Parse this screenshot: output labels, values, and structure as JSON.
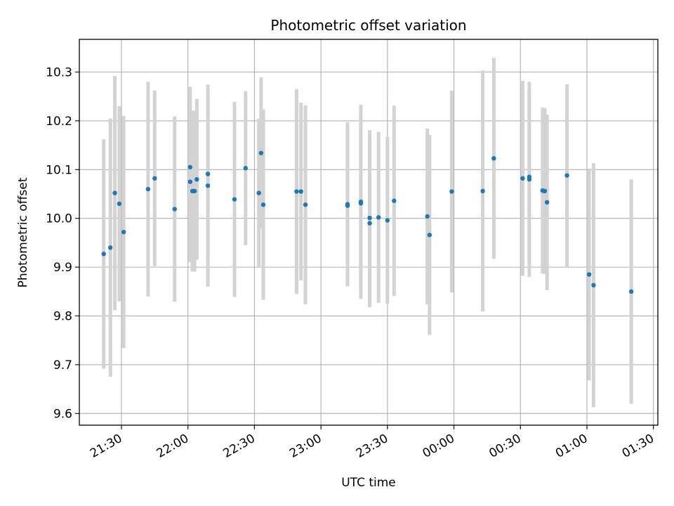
{
  "chart_data": {
    "type": "scatter",
    "title": "Photometric offset variation",
    "xlabel": "UTC time",
    "ylabel": "Photometric offset",
    "x_format": "HH:MM",
    "x_reference_date": "2000-01-01",
    "xlim": [
      "21:11",
      "01:32"
    ],
    "ylim": [
      9.576,
      10.367
    ],
    "x_ticks": [
      "21:30",
      "22:00",
      "22:30",
      "23:00",
      "23:30",
      "00:00",
      "00:30",
      "01:00",
      "01:30"
    ],
    "y_ticks": [
      "9.6",
      "9.7",
      "9.8",
      "9.9",
      "10.0",
      "10.1",
      "10.2",
      "10.3"
    ],
    "grid": true,
    "colors": {
      "points": "#1f77b4",
      "errorbars": "#d3d3d3",
      "grid": "#b0b0b0",
      "axes": "#000000"
    },
    "series": [
      {
        "x": [
          "21:22",
          "21:25",
          "21:27",
          "21:29",
          "21:31",
          "21:42",
          "21:45",
          "21:54",
          "22:01",
          "22:01",
          "22:02",
          "22:03",
          "22:04",
          "22:09",
          "22:09",
          "22:21",
          "22:26",
          "22:32",
          "22:33",
          "22:34",
          "22:49",
          "22:51",
          "22:53",
          "23:12",
          "23:12",
          "23:18",
          "23:18",
          "23:22",
          "23:22",
          "23:26",
          "23:30",
          "23:33",
          "23:48",
          "23:49",
          "23:59",
          "00:13",
          "00:18",
          "00:31",
          "00:34",
          "00:34",
          "00:40",
          "00:41",
          "00:42",
          "00:51",
          "01:01",
          "01:03",
          "01:20"
        ],
        "y": [
          9.927,
          9.94,
          10.052,
          10.03,
          9.972,
          10.06,
          10.082,
          10.019,
          10.105,
          10.075,
          10.056,
          10.056,
          10.08,
          10.067,
          10.091,
          10.039,
          10.103,
          10.052,
          10.134,
          10.028,
          10.055,
          10.055,
          10.028,
          10.026,
          10.029,
          10.031,
          10.034,
          9.99,
          10.001,
          10.002,
          9.996,
          10.036,
          10.004,
          9.966,
          10.055,
          10.056,
          10.123,
          10.082,
          10.08,
          10.085,
          10.057,
          10.056,
          10.033,
          10.088,
          9.885,
          9.863,
          9.85
        ],
        "yerr": [
          0.235,
          0.265,
          0.24,
          0.2,
          0.238,
          0.22,
          0.18,
          0.19,
          0.165,
          0.165,
          0.165,
          0.165,
          0.165,
          0.207,
          0.17,
          0.2,
          0.158,
          0.152,
          0.155,
          0.195,
          0.21,
          0.182,
          0.204,
          0.165,
          0.168,
          0.188,
          0.199,
          0.172,
          0.18,
          0.175,
          0.171,
          0.195,
          0.18,
          0.205,
          0.207,
          0.247,
          0.206,
          0.2,
          0.2,
          0.178,
          0.17,
          0.17,
          0.18,
          0.187,
          0.217,
          0.25,
          0.23
        ]
      }
    ]
  }
}
